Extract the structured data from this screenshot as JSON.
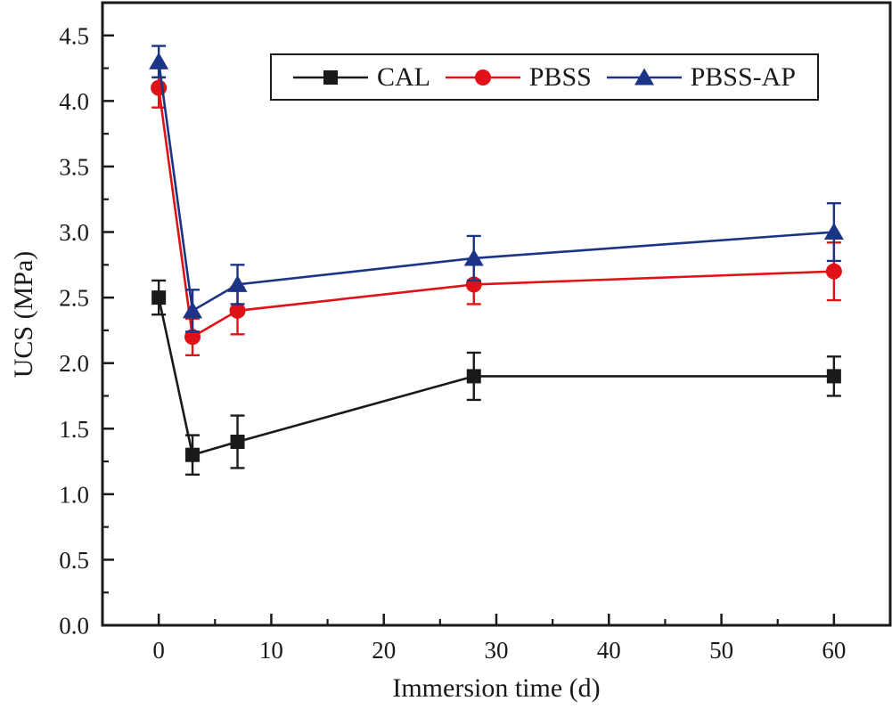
{
  "figure": {
    "background": "#ffffff",
    "axis_color": "#1a1a1a"
  },
  "chart_data": {
    "type": "line",
    "title": "",
    "xlabel": "Immersion time (d)",
    "ylabel": "UCS (MPa)",
    "grid": false,
    "legend_position": "top-center-inside",
    "xlim": [
      -5,
      65
    ],
    "ylim": [
      0,
      4.75
    ],
    "x": [
      0,
      3,
      7,
      28,
      60
    ],
    "series": [
      {
        "name": "CAL",
        "color": "#1a1a1a",
        "marker": "square",
        "values": [
          2.5,
          1.3,
          1.4,
          1.9,
          1.9
        ],
        "errors": [
          0.13,
          0.15,
          0.2,
          0.18,
          0.15
        ]
      },
      {
        "name": "PBSS",
        "color": "#e01217",
        "marker": "circle",
        "values": [
          4.1,
          2.2,
          2.4,
          2.6,
          2.7
        ],
        "errors": [
          0.15,
          0.14,
          0.18,
          0.15,
          0.22
        ]
      },
      {
        "name": "PBSS-AP",
        "color": "#1b3485",
        "marker": "triangle-up",
        "values": [
          4.3,
          2.4,
          2.6,
          2.8,
          3.0
        ],
        "errors": [
          0.12,
          0.16,
          0.15,
          0.17,
          0.22
        ]
      }
    ],
    "x_major_ticks": [
      0,
      10,
      20,
      30,
      40,
      50,
      60
    ],
    "x_tick_labels": [
      "0",
      "10",
      "20",
      "30",
      "40",
      "50",
      "60"
    ],
    "x_minor_ticks": [
      5,
      15,
      25,
      35,
      45,
      55
    ],
    "y_major_ticks": [
      0,
      0.5,
      1,
      1.5,
      2,
      2.5,
      3,
      3.5,
      4,
      4.5
    ],
    "y_tick_labels": [
      "0.0",
      "0.5",
      "1.0",
      "1.5",
      "2.0",
      "2.5",
      "3.0",
      "3.5",
      "4.0",
      "4.5"
    ],
    "y_minor_ticks": [
      0.25,
      0.75,
      1.25,
      1.75,
      2.25,
      2.75,
      3.25,
      3.75,
      4.25
    ]
  }
}
